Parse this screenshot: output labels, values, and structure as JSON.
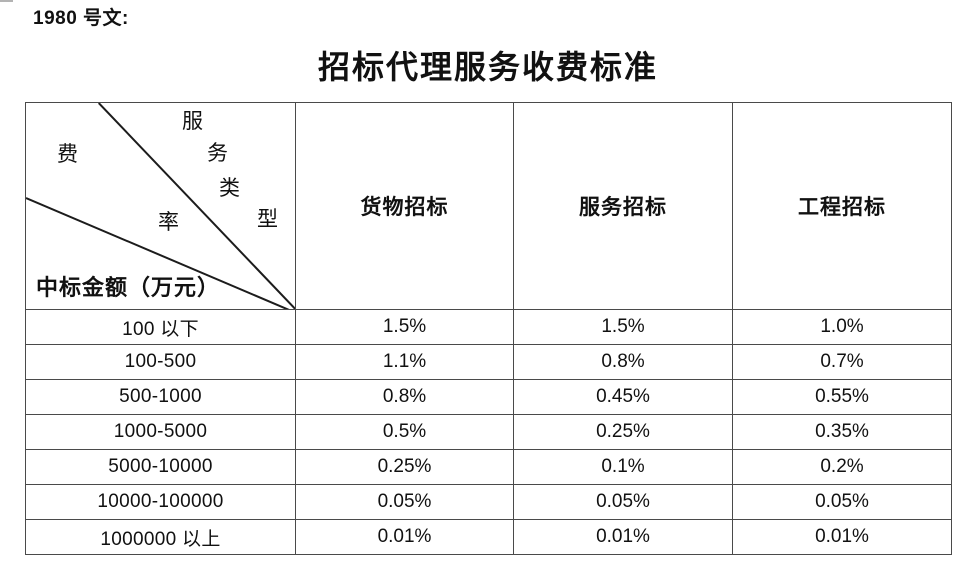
{
  "doc_ref": "1980 号文:",
  "title": "招标代理服务收费标准",
  "colors": {
    "text": "#111111",
    "table_border": "#4a4a4a",
    "diagonal_line": "#1c1c1c"
  },
  "fee_table": {
    "corner": {
      "diagonal_label_service_type": "服务类型",
      "top_chars": [
        "服",
        "务",
        "类",
        "型"
      ],
      "diagonal_label_rate": "费率",
      "left_chars": [
        "费",
        "率"
      ],
      "bottom_label": "中标金额（万元）"
    },
    "columns": [
      "货物招标",
      "服务招标",
      "工程招标"
    ],
    "rows": [
      {
        "range": "100 以下",
        "values": [
          "1.5%",
          "1.5%",
          "1.0%"
        ]
      },
      {
        "range": "100-500",
        "values": [
          "1.1%",
          "0.8%",
          "0.7%"
        ]
      },
      {
        "range": "500-1000",
        "values": [
          "0.8%",
          "0.45%",
          "0.55%"
        ]
      },
      {
        "range": "1000-5000",
        "values": [
          "0.5%",
          "0.25%",
          "0.35%"
        ]
      },
      {
        "range": "5000-10000",
        "values": [
          "0.25%",
          "0.1%",
          "0.2%"
        ]
      },
      {
        "range": "10000-100000",
        "values": [
          "0.05%",
          "0.05%",
          "0.05%"
        ]
      },
      {
        "range": "1000000 以上",
        "values": [
          "0.01%",
          "0.01%",
          "0.01%"
        ]
      }
    ]
  }
}
